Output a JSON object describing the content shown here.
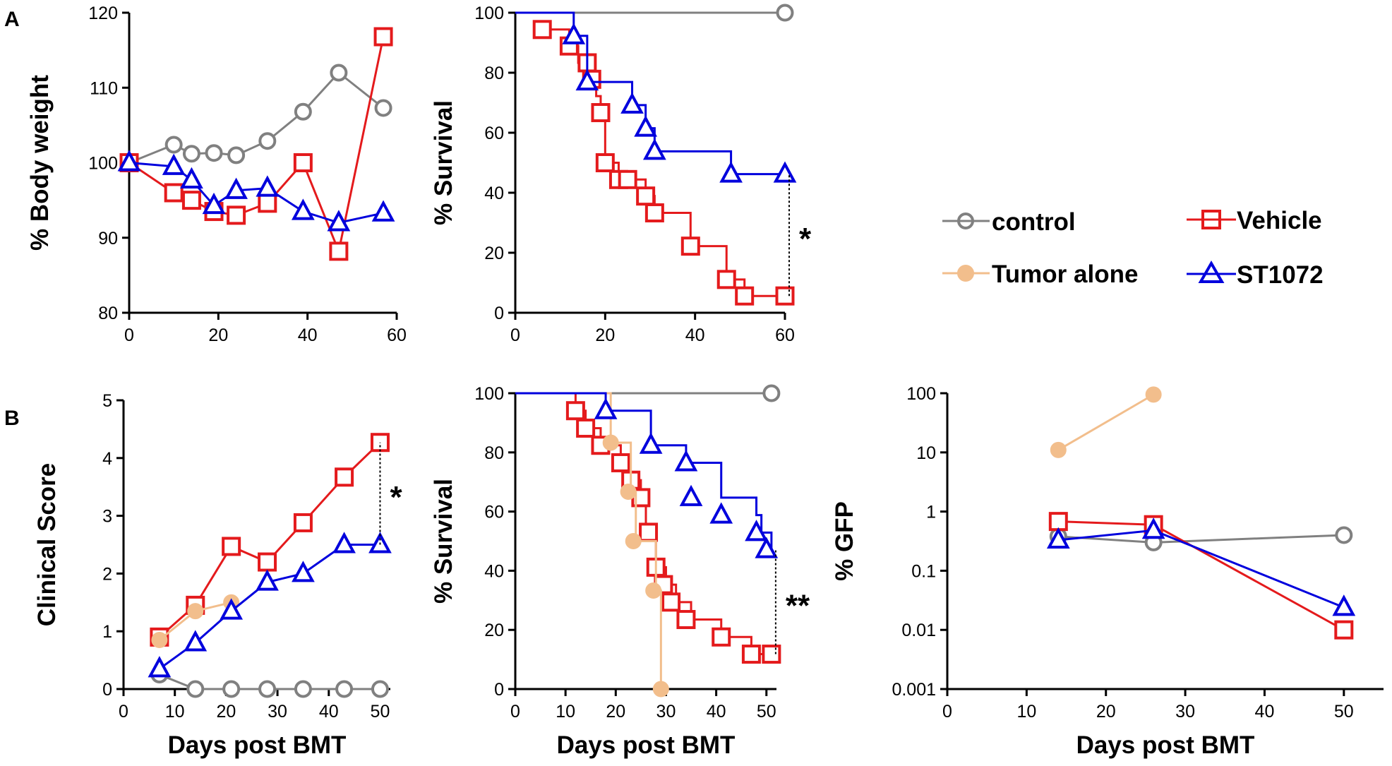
{
  "figure": {
    "panel_labels": [
      "A",
      "B"
    ]
  },
  "colors": {
    "control": "#808080",
    "vehicle": "#e41a1c",
    "tumor_alone": "#f2be8c",
    "st1072": "#0000dd"
  },
  "legend": {
    "entries": [
      {
        "label": "control",
        "series": "control",
        "marker": "circle-open"
      },
      {
        "label": "Vehicle",
        "series": "vehicle",
        "marker": "square-open"
      },
      {
        "label": "Tumor alone",
        "series": "tumor_alone",
        "marker": "circle-filled"
      },
      {
        "label": "ST1072",
        "series": "st1072",
        "marker": "triangle-open"
      }
    ]
  },
  "chart_data": [
    {
      "id": "a1",
      "panel": "A",
      "type": "line",
      "title": "",
      "xlabel": "",
      "ylabel": "% Body weight",
      "xlim": [
        0,
        60
      ],
      "ylim": [
        80,
        120
      ],
      "xticks": [
        "0",
        "20",
        "40",
        "60"
      ],
      "yticks": [
        "80",
        "90",
        "100",
        "110",
        "120"
      ],
      "series": [
        {
          "name": "control",
          "x": [
            0,
            10,
            14,
            19,
            24,
            31,
            39,
            47,
            57
          ],
          "y": [
            100,
            102.4,
            101.2,
            101.3,
            101,
            102.9,
            106.8,
            112,
            107.3
          ]
        },
        {
          "name": "Vehicle",
          "x": [
            0,
            10,
            14,
            19,
            24,
            31,
            39,
            47,
            57
          ],
          "y": [
            100,
            96,
            95,
            93.5,
            93,
            94.6,
            100,
            88.2,
            116.8
          ]
        },
        {
          "name": "ST1072",
          "x": [
            0,
            10,
            14,
            19,
            24,
            31,
            39,
            47,
            57
          ],
          "y": [
            100,
            99.5,
            97.7,
            94.3,
            96.3,
            96.6,
            93.5,
            92,
            93.3
          ]
        }
      ],
      "annotations": []
    },
    {
      "id": "a2",
      "panel": "A",
      "type": "line",
      "step": true,
      "title": "",
      "xlabel": "",
      "ylabel": "% Survival",
      "xlim": [
        0,
        60
      ],
      "ylim": [
        0,
        100
      ],
      "xticks": [
        "0",
        "20",
        "40",
        "60"
      ],
      "yticks": [
        "0",
        "20",
        "40",
        "60",
        "80",
        "100"
      ],
      "series": [
        {
          "name": "control",
          "x": [
            0,
            60
          ],
          "y": [
            100,
            100
          ],
          "markers": [
            [
              60,
              100
            ]
          ]
        },
        {
          "name": "Vehicle",
          "x": [
            6,
            12,
            14,
            16,
            18,
            19,
            20,
            23,
            25,
            29,
            31,
            39,
            47,
            51,
            60
          ],
          "y": [
            94.4,
            88.9,
            83.3,
            77.8,
            72.2,
            66.7,
            50,
            44.4,
            44.4,
            38.9,
            33.3,
            22.2,
            11.1,
            5.6,
            5.6
          ],
          "markers": [
            [
              6,
              94.4
            ],
            [
              12,
              88.9
            ],
            [
              16,
              83.3
            ],
            [
              17,
              77.8
            ],
            [
              19,
              66.7
            ],
            [
              20,
              50
            ],
            [
              23,
              44.4
            ],
            [
              25,
              44.4
            ],
            [
              29,
              38.9
            ],
            [
              31,
              33.3
            ],
            [
              39,
              22.2
            ],
            [
              47,
              11.1
            ],
            [
              51,
              5.6
            ],
            [
              60,
              5.6
            ]
          ]
        },
        {
          "name": "ST1072",
          "x": [
            0,
            13,
            16,
            26,
            29,
            31,
            48,
            60
          ],
          "y": [
            100,
            92.3,
            76.9,
            69.2,
            61.5,
            53.8,
            46.2,
            46.2
          ],
          "markers": [
            [
              13,
              92.3
            ],
            [
              16,
              76.9
            ],
            [
              26,
              69.2
            ],
            [
              29,
              61.5
            ],
            [
              31,
              53.8
            ],
            [
              48,
              46.2
            ],
            [
              60,
              46.2
            ]
          ]
        }
      ],
      "annotations": [
        {
          "text": "*",
          "x": 60,
          "between": [
            5.6,
            46.2
          ]
        }
      ]
    },
    {
      "id": "b1",
      "panel": "B",
      "type": "line",
      "title": "",
      "xlabel": "Days post BMT",
      "ylabel": "Clinical Score",
      "xlim": [
        0,
        52
      ],
      "ylim": [
        0,
        5
      ],
      "xticks": [
        "0",
        "10",
        "20",
        "30",
        "40",
        "50"
      ],
      "yticks": [
        "0",
        "1",
        "2",
        "3",
        "4",
        "5"
      ],
      "series": [
        {
          "name": "control",
          "x": [
            7,
            14,
            21,
            28,
            35,
            43,
            50
          ],
          "y": [
            0.25,
            0,
            0,
            0,
            0,
            0,
            0
          ]
        },
        {
          "name": "Vehicle",
          "x": [
            7,
            14,
            21,
            28,
            35,
            43,
            50
          ],
          "y": [
            0.9,
            1.45,
            2.47,
            2.2,
            2.88,
            3.67,
            4.27
          ]
        },
        {
          "name": "Tumor alone",
          "x": [
            7,
            14,
            21
          ],
          "y": [
            0.85,
            1.35,
            1.5
          ]
        },
        {
          "name": "ST1072",
          "x": [
            7,
            14,
            21,
            28,
            35,
            43,
            50
          ],
          "y": [
            0.35,
            0.8,
            1.35,
            1.85,
            2,
            2.5,
            2.5
          ]
        }
      ],
      "annotations": [
        {
          "text": "*",
          "x": 50,
          "between": [
            2.5,
            4.27
          ]
        }
      ]
    },
    {
      "id": "b2",
      "panel": "B",
      "type": "line",
      "step": true,
      "title": "",
      "xlabel": "Days post BMT",
      "ylabel": "% Survival",
      "xlim": [
        0,
        52
      ],
      "ylim": [
        0,
        100
      ],
      "xticks": [
        "0",
        "10",
        "20",
        "30",
        "40",
        "50"
      ],
      "yticks": [
        "0",
        "20",
        "40",
        "60",
        "80",
        "100"
      ],
      "series": [
        {
          "name": "control",
          "x": [
            0,
            51
          ],
          "y": [
            100,
            100
          ],
          "markers": [
            [
              51,
              100
            ]
          ]
        },
        {
          "name": "Vehicle",
          "x": [
            0,
            12,
            14,
            17,
            21,
            22,
            25,
            26,
            28,
            30,
            32,
            35,
            41,
            47,
            51
          ],
          "y": [
            100,
            94.1,
            88.2,
            82.4,
            76.5,
            70.6,
            64.7,
            53,
            41.2,
            35.3,
            29.4,
            23.5,
            17.6,
            11.8,
            11.8
          ],
          "markers": [
            [
              12,
              94.1
            ],
            [
              14,
              88.2
            ],
            [
              17,
              82.4
            ],
            [
              21,
              76.5
            ],
            [
              23,
              70.6
            ],
            [
              25,
              64.7
            ],
            [
              26.5,
              53
            ],
            [
              28,
              41.2
            ],
            [
              29.5,
              35.3
            ],
            [
              31,
              29.4
            ],
            [
              34,
              23.5
            ],
            [
              41,
              17.6
            ],
            [
              47,
              11.8
            ],
            [
              51,
              11.8
            ]
          ]
        },
        {
          "name": "Tumor alone",
          "x": [
            0,
            19,
            23,
            24,
            28,
            29
          ],
          "y": [
            100,
            83.3,
            66.7,
            50,
            33.3,
            0
          ],
          "markers": [
            [
              19,
              83.3
            ],
            [
              22.5,
              66.7
            ],
            [
              23.5,
              50
            ],
            [
              27.5,
              33.3
            ],
            [
              29,
              0
            ]
          ]
        },
        {
          "name": "ST1072",
          "x": [
            0,
            18,
            27,
            34,
            41,
            48,
            49,
            51
          ],
          "y": [
            100,
            94.1,
            82.4,
            76.5,
            64.7,
            58.8,
            52.9,
            47.1
          ],
          "markers": [
            [
              18,
              94.1
            ],
            [
              27,
              82.4
            ],
            [
              34,
              76.5
            ],
            [
              35,
              64.7
            ],
            [
              41,
              58.8
            ],
            [
              48,
              52.9
            ],
            [
              50,
              47.1
            ]
          ]
        }
      ],
      "annotations": [
        {
          "text": "**",
          "x": 51,
          "between": [
            11.8,
            47.1
          ]
        }
      ]
    },
    {
      "id": "b3",
      "panel": "B",
      "type": "line",
      "title": "",
      "xlabel": "Days post BMT",
      "ylabel": "% GFP",
      "yscale": "log",
      "xlim": [
        0,
        55
      ],
      "ylim": [
        0.001,
        100
      ],
      "xticks": [
        "0",
        "10",
        "20",
        "30",
        "40",
        "50"
      ],
      "yticks": [
        "0.001",
        "0.01",
        "0.1",
        "1",
        "10",
        "100"
      ],
      "series": [
        {
          "name": "control",
          "x": [
            14,
            26,
            50
          ],
          "y": [
            0.38,
            0.3,
            0.4
          ]
        },
        {
          "name": "Vehicle",
          "x": [
            14,
            26,
            50
          ],
          "y": [
            0.68,
            0.6,
            0.01
          ]
        },
        {
          "name": "Tumor alone",
          "x": [
            14,
            26
          ],
          "y": [
            11,
            95
          ]
        },
        {
          "name": "ST1072",
          "x": [
            14,
            26,
            50
          ],
          "y": [
            0.33,
            0.48,
            0.024
          ]
        }
      ],
      "annotations": []
    }
  ]
}
